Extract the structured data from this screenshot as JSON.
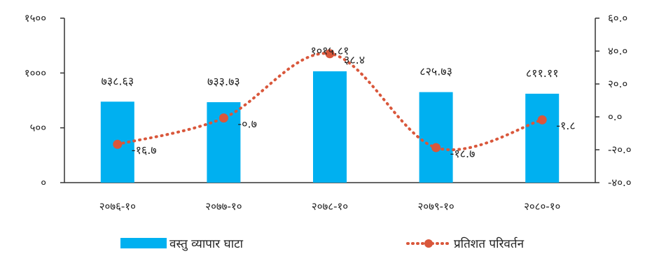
{
  "chart_data": {
    "type": "bar+line",
    "categories": [
      "२०७६-१०",
      "२०७७-१०",
      "२०७८-१०",
      "२०७९-१०",
      "२०८०-१०"
    ],
    "series": [
      {
        "name": "वस्तु व्यापार घाटा",
        "type": "bar",
        "axis": "left",
        "values": [
          738.63,
          733.73,
          1015.81,
          825.73,
          811.11
        ],
        "labels": [
          "७३८.६३",
          "७३३.७३",
          "१०१५.८१",
          "८२५.७३",
          "८११.११"
        ],
        "color": "#00B0F0"
      },
      {
        "name": "प्रतिशत परिवर्तन",
        "type": "line",
        "axis": "right",
        "values": [
          -16.7,
          -0.7,
          38.4,
          -18.7,
          -1.8
        ],
        "labels": [
          "-१६.७",
          "-०.७",
          "३८.४",
          "-१८.७",
          "-१.८"
        ],
        "color": "#D9573B"
      }
    ],
    "y_left": {
      "min": 0,
      "max": 1500,
      "ticks": [
        0,
        500,
        1000,
        1500
      ],
      "tick_labels": [
        "०",
        "५००",
        "१०००",
        "१५००"
      ]
    },
    "y_right": {
      "min": -40,
      "max": 60,
      "ticks": [
        -40,
        -20,
        0,
        20,
        40,
        60
      ],
      "tick_labels": [
        "-४०.०",
        "-२०.०",
        "०.०",
        "२०.०",
        "४०.०",
        "६०.०"
      ]
    },
    "grid": false,
    "legend_position": "bottom"
  }
}
